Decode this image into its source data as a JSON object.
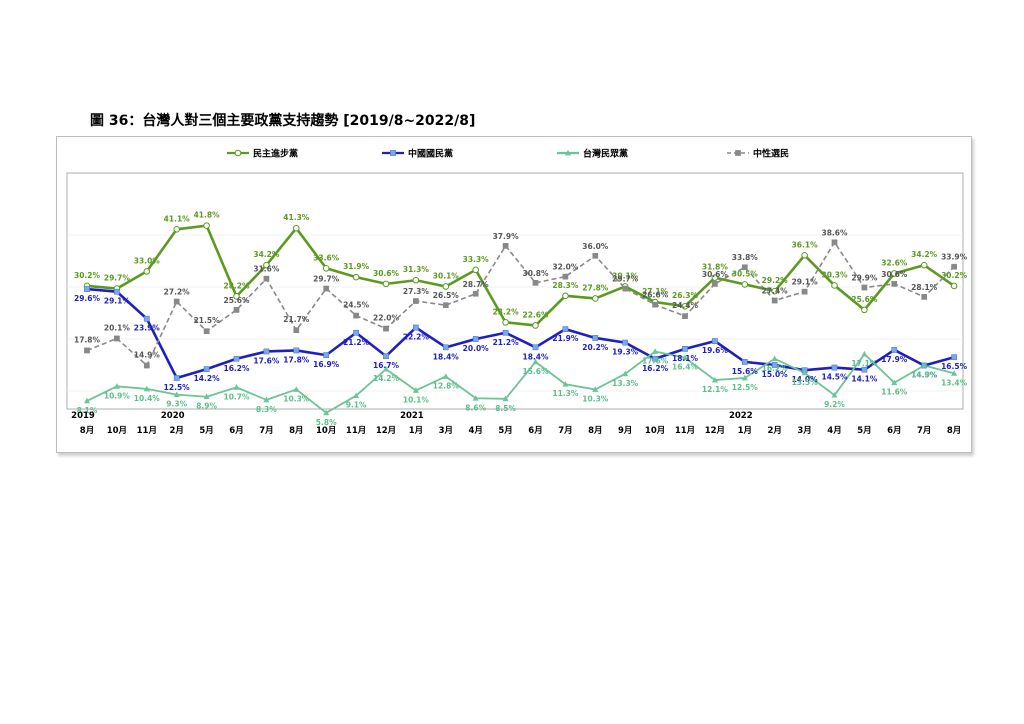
{
  "figure": {
    "title": "圖 36：台灣人對三個主要政黨支持趨勢  [2019/8~2022/8]"
  },
  "chart_data": {
    "type": "line",
    "title": "圖 36：台灣人對三個主要政黨支持趨勢  [2019/8~2022/8]",
    "x": [
      "8月",
      "10月",
      "11月",
      "2月",
      "5月",
      "6月",
      "7月",
      "8月",
      "10月",
      "11月",
      "12月",
      "1月",
      "3月",
      "4月",
      "5月",
      "6月",
      "7月",
      "8月",
      "9月",
      "10月",
      "11月",
      "12月",
      "1月",
      "2月",
      "3月",
      "4月",
      "5月",
      "6月",
      "7月",
      "8月"
    ],
    "year_labels": [
      {
        "index": 0,
        "label": "2019"
      },
      {
        "index": 3,
        "label": "2020"
      },
      {
        "index": 11,
        "label": "2021"
      },
      {
        "index": 22,
        "label": "2022"
      }
    ],
    "value_suffix": "%",
    "ylim": [
      0,
      50
    ],
    "grid": true,
    "legend_position": "top",
    "series": [
      {
        "name": "民主進步黨",
        "color": "#5a9a1f",
        "marker": "circle",
        "dash": false,
        "values": [
          30.2,
          29.7,
          33.0,
          41.1,
          41.8,
          28.2,
          34.2,
          41.3,
          33.6,
          31.9,
          30.6,
          31.3,
          30.1,
          33.3,
          23.2,
          22.6,
          28.3,
          27.8,
          30.1,
          27.1,
          26.3,
          31.8,
          30.5,
          29.2,
          36.1,
          30.3,
          25.6,
          32.6,
          34.2,
          30.2
        ]
      },
      {
        "name": "中國國民黨",
        "color": "#1f1fbf",
        "marker": "square",
        "dash": false,
        "values": [
          29.6,
          29.1,
          23.9,
          12.5,
          14.2,
          16.2,
          17.6,
          17.8,
          16.9,
          21.2,
          16.7,
          22.2,
          18.4,
          20.0,
          21.2,
          18.4,
          21.9,
          20.2,
          19.3,
          16.2,
          18.1,
          19.6,
          15.6,
          15.0,
          14.0,
          14.5,
          14.1,
          17.9,
          14.9,
          16.5
        ]
      },
      {
        "name": "台灣民眾黨",
        "color": "#6cc497",
        "marker": "triangle",
        "dash": false,
        "values": [
          8.1,
          10.9,
          10.4,
          9.3,
          8.9,
          10.7,
          8.3,
          10.3,
          5.8,
          9.1,
          14.2,
          10.1,
          12.8,
          8.6,
          8.5,
          15.6,
          11.3,
          10.3,
          13.3,
          17.6,
          16.4,
          12.1,
          12.5,
          16.2,
          13.5,
          9.2,
          17.1,
          11.6,
          14.9,
          13.4
        ]
      },
      {
        "name": "中性選民",
        "color": "#888888",
        "marker": "square",
        "dash": true,
        "values": [
          17.8,
          20.1,
          14.9,
          27.2,
          21.5,
          25.6,
          31.6,
          21.7,
          29.7,
          24.5,
          22.0,
          27.3,
          26.5,
          28.7,
          37.9,
          30.8,
          32.0,
          36.0,
          29.7,
          26.6,
          24.4,
          30.6,
          33.8,
          27.4,
          29.1,
          38.6,
          29.9,
          30.6,
          28.1,
          33.9
        ]
      }
    ]
  }
}
